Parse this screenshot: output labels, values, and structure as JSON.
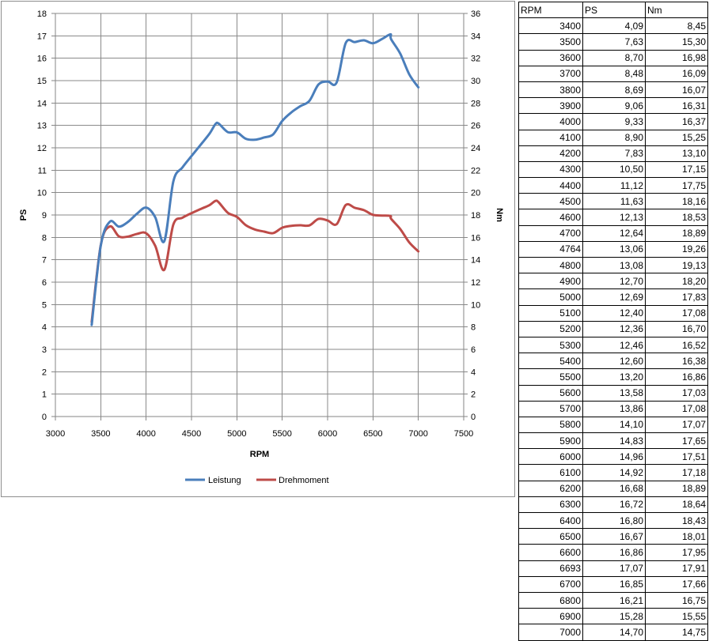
{
  "chart_data": {
    "type": "line",
    "title": "",
    "xlabel": "RPM",
    "ylabel_left": "PS",
    "ylabel_right": "Nm",
    "xlim": [
      3000,
      7500
    ],
    "xticks": [
      3000,
      3500,
      4000,
      4500,
      5000,
      5500,
      6000,
      6500,
      7000,
      7500
    ],
    "ylim_left": [
      0,
      18
    ],
    "yticks_left": [
      0,
      1,
      2,
      3,
      4,
      5,
      6,
      7,
      8,
      9,
      10,
      11,
      12,
      13,
      14,
      15,
      16,
      17,
      18
    ],
    "ylim_right": [
      0,
      36
    ],
    "yticks_right": [
      0,
      2,
      4,
      6,
      8,
      10,
      12,
      14,
      16,
      18,
      20,
      22,
      24,
      26,
      28,
      30,
      32,
      34,
      36
    ],
    "grid": true,
    "legend_position": "bottom",
    "x": [
      3400,
      3500,
      3600,
      3700,
      3800,
      3900,
      4000,
      4100,
      4200,
      4300,
      4400,
      4500,
      4600,
      4700,
      4764,
      4800,
      4900,
      5000,
      5100,
      5200,
      5300,
      5400,
      5500,
      5600,
      5700,
      5800,
      5900,
      6000,
      6100,
      6200,
      6300,
      6400,
      6500,
      6600,
      6693,
      6700,
      6800,
      6900,
      7000
    ],
    "series": [
      {
        "name": "Leistung",
        "axis": "left",
        "color": "#4a7ebb",
        "values": [
          4.09,
          7.63,
          8.7,
          8.48,
          8.69,
          9.06,
          9.33,
          8.9,
          7.83,
          10.5,
          11.12,
          11.63,
          12.13,
          12.64,
          13.06,
          13.08,
          12.7,
          12.69,
          12.4,
          12.36,
          12.46,
          12.6,
          13.2,
          13.58,
          13.86,
          14.1,
          14.83,
          14.96,
          14.92,
          16.68,
          16.72,
          16.8,
          16.67,
          16.86,
          17.07,
          16.85,
          16.21,
          15.28,
          14.7
        ]
      },
      {
        "name": "Drehmoment",
        "axis": "right",
        "color": "#be4b48",
        "values": [
          8.45,
          15.3,
          16.98,
          16.09,
          16.07,
          16.31,
          16.37,
          15.25,
          13.1,
          17.15,
          17.75,
          18.16,
          18.53,
          18.89,
          19.26,
          19.13,
          18.2,
          17.83,
          17.08,
          16.7,
          16.52,
          16.38,
          16.86,
          17.03,
          17.08,
          17.07,
          17.65,
          17.51,
          17.18,
          18.89,
          18.64,
          18.43,
          18.01,
          17.95,
          17.91,
          17.66,
          16.75,
          15.55,
          14.75
        ]
      }
    ]
  },
  "table": {
    "headers": [
      "RPM",
      "PS",
      "Nm"
    ],
    "rows": [
      [
        "3400",
        "4,09",
        "8,45"
      ],
      [
        "3500",
        "7,63",
        "15,30"
      ],
      [
        "3600",
        "8,70",
        "16,98"
      ],
      [
        "3700",
        "8,48",
        "16,09"
      ],
      [
        "3800",
        "8,69",
        "16,07"
      ],
      [
        "3900",
        "9,06",
        "16,31"
      ],
      [
        "4000",
        "9,33",
        "16,37"
      ],
      [
        "4100",
        "8,90",
        "15,25"
      ],
      [
        "4200",
        "7,83",
        "13,10"
      ],
      [
        "4300",
        "10,50",
        "17,15"
      ],
      [
        "4400",
        "11,12",
        "17,75"
      ],
      [
        "4500",
        "11,63",
        "18,16"
      ],
      [
        "4600",
        "12,13",
        "18,53"
      ],
      [
        "4700",
        "12,64",
        "18,89"
      ],
      [
        "4764",
        "13,06",
        "19,26"
      ],
      [
        "4800",
        "13,08",
        "19,13"
      ],
      [
        "4900",
        "12,70",
        "18,20"
      ],
      [
        "5000",
        "12,69",
        "17,83"
      ],
      [
        "5100",
        "12,40",
        "17,08"
      ],
      [
        "5200",
        "12,36",
        "16,70"
      ],
      [
        "5300",
        "12,46",
        "16,52"
      ],
      [
        "5400",
        "12,60",
        "16,38"
      ],
      [
        "5500",
        "13,20",
        "16,86"
      ],
      [
        "5600",
        "13,58",
        "17,03"
      ],
      [
        "5700",
        "13,86",
        "17,08"
      ],
      [
        "5800",
        "14,10",
        "17,07"
      ],
      [
        "5900",
        "14,83",
        "17,65"
      ],
      [
        "6000",
        "14,96",
        "17,51"
      ],
      [
        "6100",
        "14,92",
        "17,18"
      ],
      [
        "6200",
        "16,68",
        "18,89"
      ],
      [
        "6300",
        "16,72",
        "18,64"
      ],
      [
        "6400",
        "16,80",
        "18,43"
      ],
      [
        "6500",
        "16,67",
        "18,01"
      ],
      [
        "6600",
        "16,86",
        "17,95"
      ],
      [
        "6693",
        "17,07",
        "17,91"
      ],
      [
        "6700",
        "16,85",
        "17,66"
      ],
      [
        "6800",
        "16,21",
        "16,75"
      ],
      [
        "6900",
        "15,28",
        "15,55"
      ],
      [
        "7000",
        "14,70",
        "14,75"
      ]
    ]
  }
}
